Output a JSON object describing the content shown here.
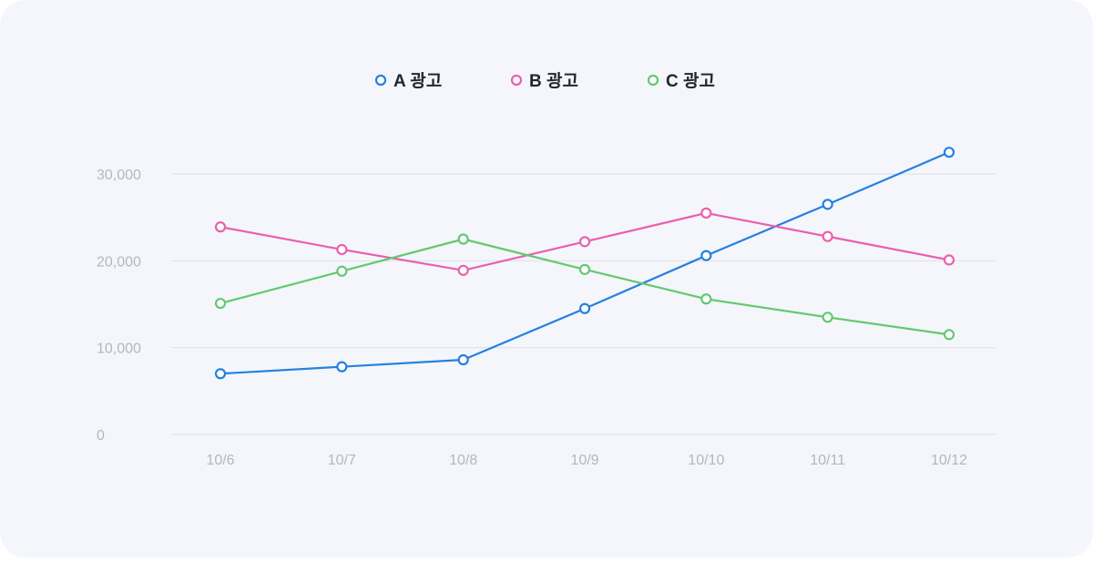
{
  "chart_data": {
    "type": "line",
    "categories": [
      "10/6",
      "10/7",
      "10/8",
      "10/9",
      "10/10",
      "10/11",
      "10/12"
    ],
    "series": [
      {
        "name": "A 광고",
        "color": "#2580e0",
        "values": [
          7000,
          7800,
          8600,
          14500,
          20600,
          26500,
          32500
        ]
      },
      {
        "name": "B 광고",
        "color": "#eb5fae",
        "values": [
          23900,
          21300,
          18900,
          22200,
          25500,
          22800,
          20100
        ]
      },
      {
        "name": "C 광고",
        "color": "#62c970",
        "values": [
          15100,
          18800,
          22500,
          19000,
          15600,
          13500,
          11500
        ]
      }
    ],
    "y_ticks": [
      "0",
      "10,000",
      "20,000",
      "30,000"
    ],
    "ylim": [
      0,
      30000
    ],
    "grid": true,
    "legend_position": "top-center"
  }
}
